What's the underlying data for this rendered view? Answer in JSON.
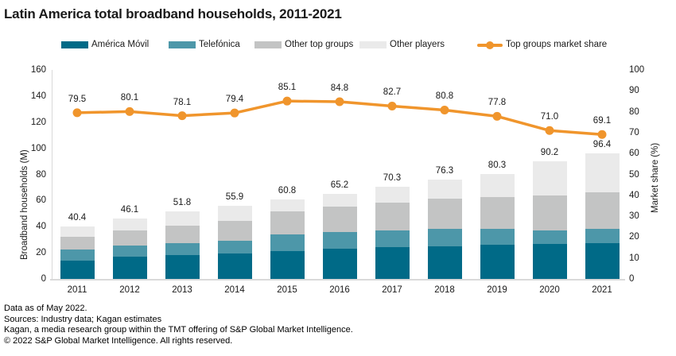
{
  "title": "Latin America total broadband households, 2011-2021",
  "colors": {
    "america_movil": "#006a87",
    "telefonica": "#4d97a9",
    "other_top_groups": "#c3c4c4",
    "other_players": "#eaeaea",
    "market_share_line": "#f0952c",
    "axis_line": "#d9d9d9",
    "text": "#1a1a1a"
  },
  "legend": {
    "items": [
      {
        "label": "América Móvil",
        "type": "bar",
        "color_key": "america_movil"
      },
      {
        "label": "Telefónica",
        "type": "bar",
        "color_key": "telefonica"
      },
      {
        "label": "Other top groups",
        "type": "bar",
        "color_key": "other_top_groups"
      },
      {
        "label": "Other players",
        "type": "bar",
        "color_key": "other_players"
      },
      {
        "label": "Top groups market share",
        "type": "line",
        "color_key": "market_share_line"
      }
    ]
  },
  "chart_data": {
    "type": "bar",
    "subtype": "stacked-bars-with-line",
    "categories": [
      "2011",
      "2012",
      "2013",
      "2014",
      "2015",
      "2016",
      "2017",
      "2018",
      "2019",
      "2020",
      "2021"
    ],
    "series": [
      {
        "name": "América Móvil",
        "type": "bar",
        "axis": "left",
        "color_key": "america_movil",
        "values": [
          14.0,
          17.0,
          18.2,
          19.5,
          21.3,
          23.1,
          24.3,
          25.0,
          26.1,
          26.7,
          27.4
        ]
      },
      {
        "name": "Telefónica",
        "type": "bar",
        "axis": "left",
        "color_key": "telefonica",
        "values": [
          8.5,
          8.4,
          9.1,
          9.5,
          12.8,
          12.8,
          12.8,
          13.4,
          12.2,
          10.3,
          10.9
        ]
      },
      {
        "name": "Other top groups",
        "type": "bar",
        "axis": "left",
        "color_key": "other_top_groups",
        "values": [
          9.6,
          11.5,
          13.2,
          15.4,
          17.6,
          19.4,
          21.0,
          23.3,
          24.2,
          27.0,
          28.3
        ]
      },
      {
        "name": "Other players",
        "type": "bar",
        "axis": "left",
        "color_key": "other_players",
        "values": [
          8.3,
          9.2,
          11.3,
          11.5,
          9.1,
          9.9,
          12.2,
          14.6,
          17.8,
          26.2,
          29.8
        ]
      },
      {
        "name": "Top groups market share",
        "type": "line",
        "axis": "right",
        "color_key": "market_share_line",
        "values": [
          79.5,
          80.1,
          78.1,
          79.4,
          85.1,
          84.8,
          82.7,
          80.8,
          77.8,
          71.0,
          69.1
        ]
      }
    ],
    "bar_totals": [
      40.4,
      46.1,
      51.8,
      55.9,
      60.8,
      65.2,
      70.3,
      76.3,
      80.3,
      90.2,
      96.4
    ],
    "ylabel_left": "Broadband households (M)",
    "ylabel_right": "Market share (%)",
    "ylim_left": [
      0,
      160
    ],
    "ylim_right": [
      0,
      100
    ],
    "yticks_left": [
      0,
      20,
      40,
      60,
      80,
      100,
      120,
      140,
      160
    ],
    "yticks_right": [
      0,
      10,
      20,
      30,
      40,
      50,
      60,
      70,
      80,
      90,
      100
    ],
    "grid": false,
    "legend_position": "top",
    "data_labels": true
  },
  "footer": {
    "lines": [
      "Data as of May 2022.",
      "Sources: Industry data; Kagan estimates",
      "Kagan, a media research group within the TMT offering of S&P Global Market Intelligence.",
      "© 2022 S&P Global Market Intelligence. All rights reserved."
    ]
  }
}
